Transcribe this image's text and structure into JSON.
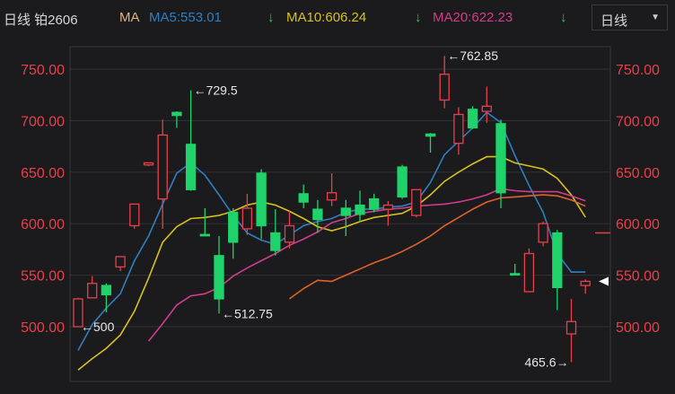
{
  "header": {
    "title": "日线 铂2606",
    "ma_label": "MA",
    "ma5": "MA5:553.01",
    "ma10": "MA10:606.24",
    "ma20": "MA20:622.23",
    "down_arrow": "↓",
    "period_select": "日线",
    "dropdown_icon": "▼"
  },
  "colors": {
    "background": "#1b1b1d",
    "up": "#e8404a",
    "down": "#1fd36a",
    "ma5": "#2f7fc0",
    "ma10": "#d6c21c",
    "ma20": "#d23c8c",
    "ma_long": "#e0622a",
    "axis_label": "#e8404a",
    "title": "#d8d8d8",
    "ma_label": "#e0b080"
  },
  "chart_data": {
    "type": "candlestick",
    "ylim": [
      450,
      775
    ],
    "y_ticks": [
      "750.00",
      "700.00",
      "650.00",
      "600.00",
      "550.00",
      "500.00"
    ],
    "y_tick_values": [
      750,
      700,
      650,
      600,
      550,
      500
    ],
    "grid": true,
    "candles": [
      {
        "o": 500,
        "h": 528,
        "l": 500,
        "c": 527
      },
      {
        "o": 528,
        "h": 549,
        "l": 528,
        "c": 542
      },
      {
        "o": 540,
        "h": 542,
        "l": 514,
        "c": 531
      },
      {
        "o": 558,
        "h": 568,
        "l": 554,
        "c": 568
      },
      {
        "o": 598,
        "h": 619,
        "l": 595,
        "c": 619
      },
      {
        "o": 657,
        "h": 659,
        "l": 656,
        "c": 659
      },
      {
        "o": 624,
        "h": 701,
        "l": 595,
        "c": 686
      },
      {
        "o": 708,
        "h": 709,
        "l": 693,
        "c": 705
      },
      {
        "o": 677,
        "h": 729.5,
        "l": 632,
        "c": 633
      },
      {
        "o": 589.5,
        "h": 615,
        "l": 589,
        "c": 589
      },
      {
        "o": 569,
        "h": 588,
        "l": 512.75,
        "c": 527
      },
      {
        "o": 611,
        "h": 615,
        "l": 566,
        "c": 582
      },
      {
        "o": 595,
        "h": 629,
        "l": 589,
        "c": 615
      },
      {
        "o": 649,
        "h": 653,
        "l": 585,
        "c": 598
      },
      {
        "o": 591,
        "h": 614,
        "l": 569,
        "c": 574
      },
      {
        "o": 582,
        "h": 612,
        "l": 576,
        "c": 598
      },
      {
        "o": 629,
        "h": 638,
        "l": 615,
        "c": 621
      },
      {
        "o": 614,
        "h": 623,
        "l": 591,
        "c": 604
      },
      {
        "o": 623,
        "h": 649,
        "l": 617,
        "c": 630
      },
      {
        "o": 615,
        "h": 623,
        "l": 588,
        "c": 608
      },
      {
        "o": 618,
        "h": 632,
        "l": 602,
        "c": 609
      },
      {
        "o": 624,
        "h": 629,
        "l": 611,
        "c": 614
      },
      {
        "o": 614,
        "h": 622,
        "l": 598,
        "c": 618
      },
      {
        "o": 655,
        "h": 657,
        "l": 624,
        "c": 626
      },
      {
        "o": 608,
        "h": 633,
        "l": 606,
        "c": 633
      },
      {
        "o": 687,
        "h": 688,
        "l": 669,
        "c": 685
      },
      {
        "o": 720,
        "h": 762.85,
        "l": 712,
        "c": 745
      },
      {
        "o": 678,
        "h": 713,
        "l": 667,
        "c": 706
      },
      {
        "o": 711,
        "h": 714,
        "l": 692,
        "c": 693
      },
      {
        "o": 709,
        "h": 733,
        "l": 698,
        "c": 714
      },
      {
        "o": 697,
        "h": 701,
        "l": 615,
        "c": 630
      },
      {
        "o": 551.5,
        "h": 561,
        "l": 551,
        "c": 551
      },
      {
        "o": 534,
        "h": 576,
        "l": 534,
        "c": 571
      },
      {
        "o": 582,
        "h": 602,
        "l": 578,
        "c": 600
      },
      {
        "o": 591,
        "h": 594,
        "l": 516,
        "c": 538
      },
      {
        "o": 493,
        "h": 527,
        "l": 465.6,
        "c": 505
      },
      {
        "o": 540,
        "h": 546,
        "l": 532,
        "c": 544
      }
    ],
    "series": [
      {
        "name": "MA5",
        "values": [
          477,
          502,
          518,
          532,
          564,
          588,
          619,
          649,
          659,
          647,
          628,
          608,
          591,
          584,
          580,
          589,
          598,
          602,
          605,
          611,
          614,
          614,
          616,
          617,
          621,
          640,
          667,
          680,
          693,
          708,
          698,
          666,
          637,
          611,
          571,
          553,
          553.01
        ]
      },
      {
        "name": "MA10",
        "values": [
          458,
          469,
          479,
          492,
          515,
          547,
          582,
          597,
          605,
          606,
          608,
          612,
          618,
          621,
          618,
          612,
          605,
          597,
          593,
          597,
          602,
          606,
          608,
          610,
          617,
          628,
          641,
          650,
          658,
          665,
          665,
          659,
          656,
          653,
          644,
          628,
          606.24
        ]
      },
      {
        "name": "MA20",
        "values": [
          null,
          null,
          null,
          null,
          null,
          486,
          503,
          521,
          530,
          532,
          538,
          549,
          557,
          564,
          571,
          579,
          585,
          592,
          601,
          605,
          610,
          612,
          614,
          615,
          617,
          618,
          619,
          621,
          624,
          628,
          634,
          632,
          631,
          631,
          631,
          627,
          622.23
        ]
      },
      {
        "values": [
          null,
          null,
          null,
          null,
          null,
          null,
          null,
          null,
          null,
          null,
          null,
          null,
          null,
          null,
          null,
          527,
          537,
          545,
          544,
          550,
          556,
          562,
          567,
          573,
          580,
          588,
          598,
          606,
          614,
          621,
          625,
          626,
          627,
          628,
          627,
          623,
          617
        ]
      }
    ],
    "annotations": [
      {
        "index": 26,
        "value": 762.85,
        "text": "762.85",
        "side": "right"
      },
      {
        "index": 8,
        "value": 729.5,
        "text": "729.5",
        "side": "right"
      },
      {
        "index": 10,
        "value": 512.75,
        "text": "512.75",
        "side": "right"
      },
      {
        "index": 0,
        "value": 500,
        "text": "500",
        "side": "right"
      },
      {
        "index": 35,
        "value": 465.6,
        "text": "465.6",
        "side": "left"
      }
    ],
    "right_marker_dash_value": 591,
    "current_price_marker_value": 544
  }
}
